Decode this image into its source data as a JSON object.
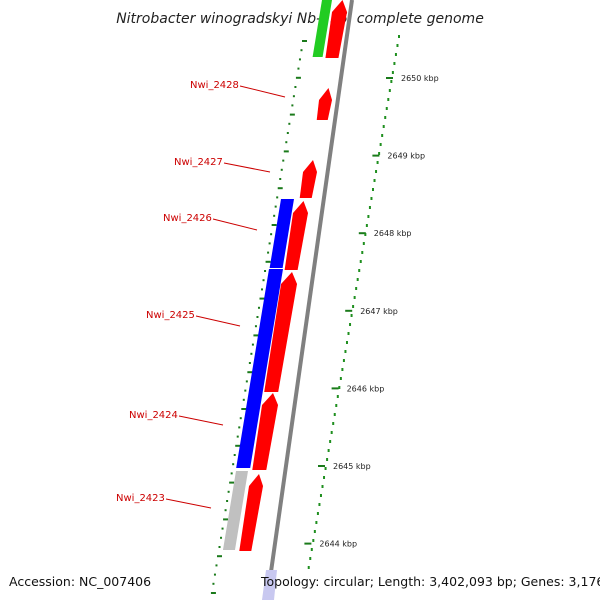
{
  "title": "Nitrobacter winogradskyi Nb-255, complete genome",
  "accession": "Accession: NC_007406",
  "topology": "Topology: circular; Length: 3,402,093 bp; Genes: 3,176",
  "colors": {
    "forward": "#ff0000",
    "blue": "#0000ff",
    "gray": "#c0c0c0",
    "green": "#22cc22",
    "backbone": "#808080",
    "tick": "#1a7a1a",
    "label": "#cc0000"
  },
  "ticks": [
    {
      "label": "2650 kbp"
    },
    {
      "label": "2649 kbp"
    },
    {
      "label": "2648 kbp"
    },
    {
      "label": "2647 kbp"
    },
    {
      "label": "2646 kbp"
    },
    {
      "label": "2645 kbp"
    },
    {
      "label": "2644 kbp"
    }
  ],
  "gene_labels": [
    {
      "label": "Nwi_2428"
    },
    {
      "label": "Nwi_2427"
    },
    {
      "label": "Nwi_2426"
    },
    {
      "label": "Nwi_2425"
    },
    {
      "label": "Nwi_2424"
    },
    {
      "label": "Nwi_2423"
    }
  ]
}
